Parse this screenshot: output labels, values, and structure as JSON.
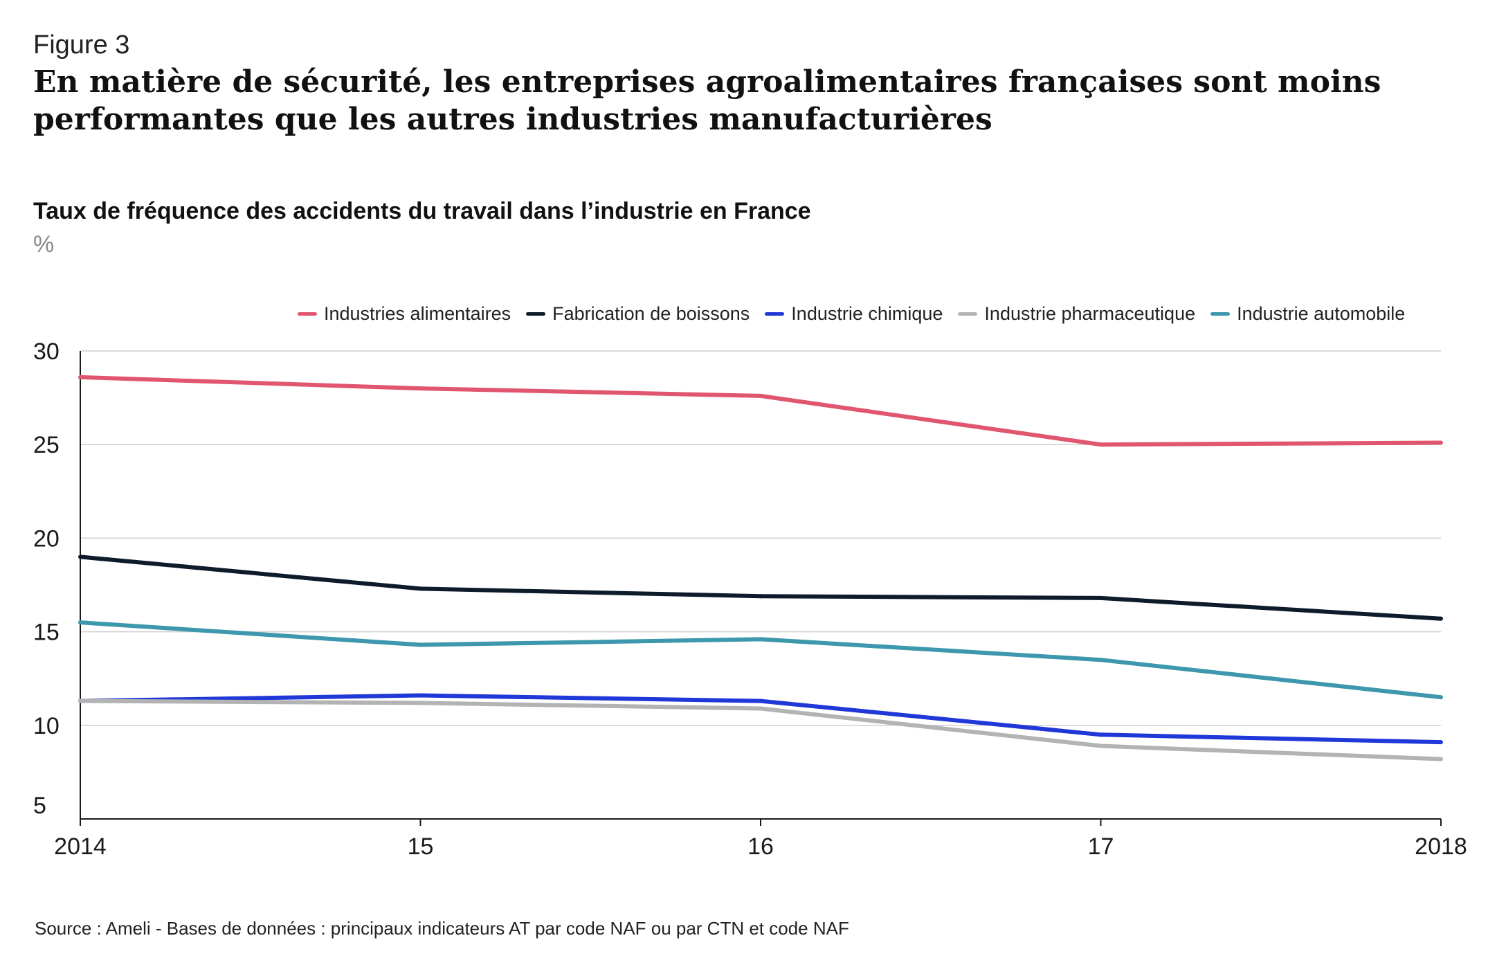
{
  "figure_label": "Figure 3",
  "headline": "En matière de sécurité, les entreprises agroalimentaires françaises sont moins performantes que les autres industries manufacturières",
  "source": "Source : Ameli - Bases de données : principaux indicateurs AT par code NAF ou par CTN et code NAF",
  "chart_data": {
    "type": "line",
    "title": "Taux de fréquence des accidents du travail dans l’industrie en France",
    "ylabel": "%",
    "xlabel": "",
    "categories": [
      "2014",
      "15",
      "16",
      "17",
      "2018"
    ],
    "ylim": [
      5,
      30
    ],
    "yticks": [
      30,
      25,
      20,
      15,
      10,
      5
    ],
    "grid": true,
    "legend_position": "top",
    "series": [
      {
        "name": "Industries alimentaires",
        "color": "#e0566f",
        "values": [
          28.6,
          28.0,
          27.6,
          25.0,
          25.1
        ]
      },
      {
        "name": "Fabrication de boissons",
        "color": "#0d1b2a",
        "values": [
          19.0,
          17.3,
          16.9,
          16.8,
          15.7
        ]
      },
      {
        "name": "Industrie chimique",
        "color": "#2138d8",
        "values": [
          11.3,
          11.6,
          11.3,
          9.5,
          9.1
        ]
      },
      {
        "name": "Industrie pharmaceutique",
        "color": "#b3b3b3",
        "values": [
          11.3,
          11.2,
          10.9,
          8.9,
          8.2
        ]
      },
      {
        "name": "Industrie automobile",
        "color": "#3d97ad",
        "values": [
          15.5,
          14.3,
          14.6,
          13.5,
          11.5
        ]
      }
    ]
  }
}
